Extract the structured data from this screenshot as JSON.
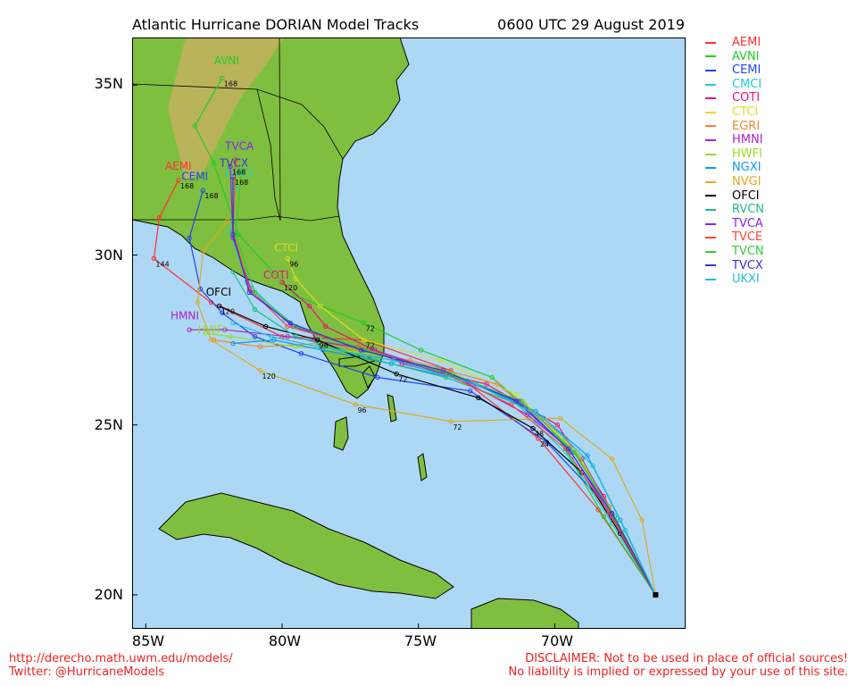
{
  "header": {
    "title": "Atlantic Hurricane DORIAN Model Tracks",
    "timestamp": "0600 UTC 29 August 2019"
  },
  "axes": {
    "lat_labels": [
      "35N",
      "30N",
      "25N",
      "20N"
    ],
    "lon_labels": [
      "85W",
      "80W",
      "75W",
      "70W"
    ]
  },
  "colors": {
    "ocean": "#add8f5",
    "land": "#7fbf3f",
    "border": "#000000"
  },
  "legend": [
    {
      "name": "AEMI",
      "color": "#ff3030"
    },
    {
      "name": "AVNI",
      "color": "#22cc22"
    },
    {
      "name": "CEMI",
      "color": "#2244ee"
    },
    {
      "name": "CMCI",
      "color": "#22cccc"
    },
    {
      "name": "COTI",
      "color": "#ee1177"
    },
    {
      "name": "CTCI",
      "color": "#dddd22"
    },
    {
      "name": "EGRI",
      "color": "#ee8833"
    },
    {
      "name": "HMNI",
      "color": "#aa22cc"
    },
    {
      "name": "HWFI",
      "color": "#99dd22"
    },
    {
      "name": "NGXI",
      "color": "#1199ee"
    },
    {
      "name": "NVGI",
      "color": "#ddaa22"
    },
    {
      "name": "OFCI",
      "color": "#000000"
    },
    {
      "name": "RVCN",
      "color": "#22bb88"
    },
    {
      "name": "TVCA",
      "color": "#8822ee"
    },
    {
      "name": "TVCE",
      "color": "#ff4433"
    },
    {
      "name": "TVCN",
      "color": "#33cc33"
    },
    {
      "name": "TVCX",
      "color": "#3333dd"
    },
    {
      "name": "UKXI",
      "color": "#22bbdd"
    }
  ],
  "tracks": [
    {
      "name": "AEMI",
      "color": "#ff3030",
      "points": [
        [
          -66.3,
          20.0
        ],
        [
          -68.4,
          22.5
        ],
        [
          -70.6,
          24.6
        ],
        [
          -73.8,
          26.6
        ],
        [
          -77.0,
          27.5
        ],
        [
          -80.0,
          27.6
        ],
        [
          -82.6,
          28.6
        ],
        [
          -84.7,
          29.9
        ],
        [
          -84.5,
          31.1
        ],
        [
          -83.8,
          32.2
        ]
      ],
      "labels": [
        [
          "24",
          -70.6,
          24.6
        ],
        [
          "72",
          -77.0,
          27.5
        ],
        [
          "144",
          -84.7,
          29.9
        ],
        [
          "168",
          -83.8,
          32.2
        ]
      ],
      "tag": [
        -83.8,
        32.4
      ]
    },
    {
      "name": "AVNI",
      "color": "#22cc22",
      "points": [
        [
          -66.3,
          20.0
        ],
        [
          -68.2,
          22.3
        ],
        [
          -70.0,
          24.8
        ],
        [
          -72.3,
          26.4
        ],
        [
          -74.9,
          27.2
        ],
        [
          -77.0,
          28.0
        ],
        [
          -79.5,
          28.8
        ],
        [
          -81.6,
          30.6
        ],
        [
          -82.5,
          32.7
        ],
        [
          -83.2,
          33.8
        ],
        [
          -82.2,
          35.2
        ]
      ],
      "labels": [
        [
          "72",
          -77.0,
          28.0
        ],
        [
          "168",
          -82.2,
          35.2
        ]
      ],
      "tag": [
        -82.0,
        35.5
      ]
    },
    {
      "name": "CEMI",
      "color": "#2244ee",
      "points": [
        [
          -66.3,
          20.0
        ],
        [
          -68.3,
          22.8
        ],
        [
          -70.3,
          24.5
        ],
        [
          -73.1,
          26.0
        ],
        [
          -76.5,
          26.4
        ],
        [
          -79.3,
          27.1
        ],
        [
          -81.0,
          27.6
        ],
        [
          -82.2,
          28.3
        ],
        [
          -83.0,
          29.0
        ],
        [
          -83.4,
          30.5
        ],
        [
          -82.9,
          31.9
        ]
      ],
      "labels": [
        [
          "168",
          -82.9,
          31.9
        ]
      ],
      "tag": [
        -83.2,
        32.1
      ]
    },
    {
      "name": "CMCI",
      "color": "#22cccc",
      "points": [
        [
          -66.3,
          20.0
        ],
        [
          -67.9,
          22.1
        ],
        [
          -69.4,
          24.0
        ],
        [
          -71.6,
          25.8
        ],
        [
          -74.3,
          26.7
        ],
        [
          -77.5,
          27.1
        ],
        [
          -79.9,
          28.1
        ],
        [
          -81.3,
          29.2
        ],
        [
          -81.9,
          30.7
        ],
        [
          -81.7,
          32.0
        ]
      ],
      "labels": [],
      "tag": [
        -81.6,
        32.2
      ]
    },
    {
      "name": "COTI",
      "color": "#ee1177",
      "points": [
        [
          -66.3,
          20.0
        ],
        [
          -68.2,
          22.9
        ],
        [
          -69.9,
          25.0
        ],
        [
          -72.5,
          26.2
        ],
        [
          -75.6,
          26.8
        ],
        [
          -78.4,
          27.9
        ],
        [
          -79.0,
          28.5
        ],
        [
          -80.0,
          29.2
        ]
      ],
      "labels": [
        [
          "120",
          -80.0,
          29.2
        ]
      ],
      "tag": [
        -80.2,
        29.2
      ]
    },
    {
      "name": "CTCI",
      "color": "#dddd22",
      "points": [
        [
          -66.3,
          20.0
        ],
        [
          -67.8,
          22.1
        ],
        [
          -69.2,
          24.2
        ],
        [
          -71.4,
          25.9
        ],
        [
          -74.2,
          26.9
        ],
        [
          -77.0,
          27.5
        ],
        [
          -78.6,
          28.5
        ],
        [
          -79.5,
          29.3
        ],
        [
          -79.8,
          29.9
        ]
      ],
      "labels": [
        [
          "96",
          -79.8,
          29.9
        ]
      ],
      "tag": [
        -79.8,
        30.0
      ]
    },
    {
      "name": "EGRI",
      "color": "#ee8833",
      "points": [
        [
          -66.3,
          20.0
        ],
        [
          -68.0,
          22.6
        ],
        [
          -69.6,
          24.6
        ],
        [
          -72.1,
          26.2
        ],
        [
          -75.3,
          26.9
        ],
        [
          -78.5,
          27.4
        ],
        [
          -80.8,
          27.3
        ],
        [
          -82.5,
          27.5
        ]
      ],
      "labels": [],
      "tag": null
    },
    {
      "name": "HMNI",
      "color": "#aa22cc",
      "points": [
        [
          -66.3,
          20.0
        ],
        [
          -67.9,
          22.4
        ],
        [
          -69.0,
          24.0
        ],
        [
          -71.0,
          25.3
        ],
        [
          -73.6,
          26.4
        ],
        [
          -76.6,
          27.2
        ],
        [
          -79.8,
          27.6
        ],
        [
          -82.1,
          27.8
        ],
        [
          -83.4,
          27.8
        ]
      ],
      "labels": [],
      "tag": [
        -83.6,
        28.0
      ]
    },
    {
      "name": "HWFI",
      "color": "#99dd22",
      "points": [
        [
          -66.3,
          20.0
        ],
        [
          -67.8,
          22.2
        ],
        [
          -69.1,
          24.1
        ],
        [
          -71.1,
          25.6
        ],
        [
          -73.7,
          26.5
        ],
        [
          -76.6,
          27.1
        ],
        [
          -79.5,
          27.3
        ],
        [
          -81.9,
          27.6
        ],
        [
          -82.8,
          27.7
        ]
      ],
      "labels": [],
      "tag": [
        -82.6,
        27.6
      ]
    },
    {
      "name": "NGXI",
      "color": "#1199ee",
      "points": [
        [
          -66.3,
          20.0
        ],
        [
          -67.6,
          22.2
        ],
        [
          -68.8,
          24.1
        ],
        [
          -70.7,
          25.4
        ],
        [
          -73.2,
          26.3
        ],
        [
          -76.0,
          26.8
        ],
        [
          -78.5,
          27.2
        ],
        [
          -80.3,
          27.5
        ],
        [
          -81.8,
          27.4
        ]
      ],
      "labels": [],
      "tag": null
    },
    {
      "name": "NVGI",
      "color": "#ddaa22",
      "points": [
        [
          -66.3,
          20.0
        ],
        [
          -66.8,
          22.2
        ],
        [
          -67.9,
          24.0
        ],
        [
          -69.8,
          25.2
        ],
        [
          -73.8,
          25.1
        ],
        [
          -77.3,
          25.6
        ],
        [
          -80.8,
          26.6
        ],
        [
          -82.6,
          27.5
        ],
        [
          -83.1,
          28.6
        ],
        [
          -82.9,
          30.1
        ],
        [
          -82.0,
          31.0
        ]
      ],
      "labels": [
        [
          "72",
          -73.8,
          25.1
        ],
        [
          "96",
          -77.3,
          25.6
        ],
        [
          "120",
          -80.8,
          26.6
        ]
      ],
      "tag": null
    },
    {
      "name": "OFCI",
      "color": "#000000",
      "points": [
        [
          -66.3,
          20.0
        ],
        [
          -67.6,
          21.8
        ],
        [
          -69.0,
          23.6
        ],
        [
          -70.8,
          24.9
        ],
        [
          -72.8,
          25.8
        ],
        [
          -75.8,
          26.5
        ],
        [
          -78.7,
          27.5
        ],
        [
          -80.6,
          27.9
        ],
        [
          -82.3,
          28.5
        ]
      ],
      "labels": [
        [
          "48",
          -70.8,
          24.9
        ],
        [
          "72",
          -75.8,
          26.5
        ],
        [
          "96",
          -78.7,
          27.5
        ],
        [
          "120",
          -82.3,
          28.5
        ]
      ],
      "tag": [
        -82.3,
        28.7
      ]
    },
    {
      "name": "RVCN",
      "color": "#22bb88",
      "points": [
        [
          -66.3,
          20.0
        ],
        [
          -67.8,
          22.3
        ],
        [
          -69.3,
          24.2
        ],
        [
          -71.3,
          25.6
        ],
        [
          -74.0,
          26.4
        ],
        [
          -77.0,
          27.0
        ],
        [
          -79.5,
          27.6
        ],
        [
          -81.0,
          28.4
        ],
        [
          -81.8,
          29.5
        ]
      ],
      "labels": [],
      "tag": null
    },
    {
      "name": "TVCA",
      "color": "#8822ee",
      "points": [
        [
          -66.3,
          20.0
        ],
        [
          -67.9,
          22.3
        ],
        [
          -69.4,
          24.2
        ],
        [
          -71.3,
          25.7
        ],
        [
          -74.0,
          26.5
        ],
        [
          -77.0,
          27.2
        ],
        [
          -79.6,
          27.9
        ],
        [
          -81.1,
          28.9
        ],
        [
          -81.8,
          30.5
        ],
        [
          -81.9,
          32.6
        ]
      ],
      "labels": [
        [
          "168",
          -81.9,
          32.6
        ]
      ],
      "tag": [
        -81.6,
        33.0
      ]
    },
    {
      "name": "TVCE",
      "color": "#ff4433",
      "points": [
        [
          -66.3,
          20.0
        ],
        [
          -68.0,
          22.4
        ],
        [
          -69.6,
          24.3
        ],
        [
          -71.6,
          25.6
        ],
        [
          -74.3,
          26.6
        ],
        [
          -77.2,
          27.3
        ],
        [
          -79.8,
          27.9
        ],
        [
          -81.2,
          29.0
        ],
        [
          -81.8,
          30.7
        ],
        [
          -81.7,
          32.8
        ]
      ],
      "labels": [],
      "tag": null
    },
    {
      "name": "TVCN",
      "color": "#33cc33",
      "points": [
        [
          -66.3,
          20.0
        ],
        [
          -67.8,
          22.3
        ],
        [
          -69.3,
          24.2
        ],
        [
          -71.2,
          25.7
        ],
        [
          -73.9,
          26.5
        ],
        [
          -76.9,
          27.2
        ],
        [
          -79.5,
          27.9
        ],
        [
          -81.0,
          28.9
        ],
        [
          -81.7,
          30.6
        ],
        [
          -81.5,
          32.5
        ]
      ],
      "labels": [],
      "tag": null
    },
    {
      "name": "TVCX",
      "color": "#3333dd",
      "points": [
        [
          -66.3,
          20.0
        ],
        [
          -67.9,
          22.4
        ],
        [
          -69.5,
          24.3
        ],
        [
          -71.4,
          25.7
        ],
        [
          -74.1,
          26.6
        ],
        [
          -77.1,
          27.2
        ],
        [
          -79.7,
          28.0
        ],
        [
          -81.2,
          28.9
        ],
        [
          -81.8,
          30.6
        ],
        [
          -81.8,
          32.3
        ]
      ],
      "labels": [
        [
          "168",
          -81.8,
          32.3
        ]
      ],
      "tag": [
        -81.8,
        32.5
      ]
    },
    {
      "name": "UKXI",
      "color": "#22bbdd",
      "points": [
        [
          -66.3,
          20.0
        ],
        [
          -67.4,
          21.9
        ],
        [
          -68.6,
          23.8
        ],
        [
          -70.4,
          25.2
        ],
        [
          -72.9,
          26.2
        ],
        [
          -75.9,
          26.9
        ],
        [
          -78.7,
          27.3
        ],
        [
          -80.4,
          27.6
        ],
        [
          -81.8,
          28.0
        ]
      ],
      "labels": [],
      "tag": null
    }
  ],
  "footer": {
    "url": "http://derecho.math.uwm.edu/models/",
    "twitter": "Twitter: @HurricaneModels",
    "disclaimer1": "DISCLAIMER: Not to be used in place of official sources!",
    "disclaimer2": "No liability is implied or expressed by your use of this site."
  }
}
